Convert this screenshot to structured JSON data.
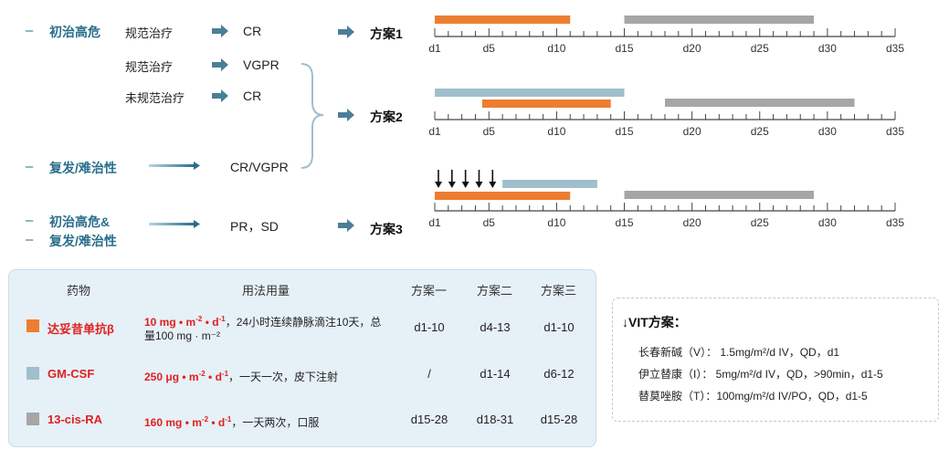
{
  "flow": {
    "bullet": "–",
    "categories": {
      "newly_high_risk": "初治高危",
      "relapsed_refractory": "复发/难治性",
      "newly_high_risk_and": "初治高危&",
      "relapsed_refractory_2": "复发/难治性"
    },
    "steps": {
      "standard_1": "规范治疗",
      "standard_2": "规范治疗",
      "non_standard": "未规范治疗"
    },
    "responses": {
      "r1": "CR",
      "r2": "VGPR",
      "r3": "CR",
      "r4": "CR/VGPR",
      "r5": "PR，SD"
    },
    "plans": [
      "方案1",
      "方案2",
      "方案3"
    ]
  },
  "colors": {
    "dinutuximab": "#ed7d31",
    "gmcsf": "#9fbfcc",
    "cis_ra": "#a6a6a6",
    "accent": "#2a6d8c"
  },
  "timeline": {
    "axis_min": 1,
    "axis_max": 35,
    "tick_labels": [
      "d1",
      "d5",
      "d10",
      "d15",
      "d20",
      "d25",
      "d30",
      "d35"
    ],
    "tick_values": [
      1,
      5,
      10,
      15,
      20,
      25,
      30,
      35
    ],
    "plan1": [
      {
        "drug": "dinutuximab",
        "start": 1,
        "end": 11
      },
      {
        "drug": "cis_ra",
        "start": 15,
        "end": 29
      }
    ],
    "plan2": [
      {
        "drug": "gmcsf",
        "start": 1,
        "end": 15
      },
      {
        "drug": "dinutuximab",
        "start": 4.5,
        "end": 14
      },
      {
        "drug": "cis_ra",
        "start": 18,
        "end": 32
      }
    ],
    "plan3": [
      {
        "drug": "gmcsf",
        "start": 6,
        "end": 13
      },
      {
        "drug": "dinutuximab",
        "start": 1,
        "end": 11
      },
      {
        "drug": "cis_ra",
        "start": 15,
        "end": 29
      }
    ],
    "plan3_vit_arrows": [
      1,
      2,
      3,
      4,
      5
    ]
  },
  "table": {
    "headers": {
      "drug": "药物",
      "dose": "用法用量",
      "plan1": "方案一",
      "plan2": "方案二",
      "plan3": "方案三"
    },
    "rows": [
      {
        "color_key": "dinutuximab",
        "name": "达妥昔单抗β",
        "dose_bold": "10 mg • m",
        "dose_sup1": "-2",
        "dose_mid": " • d",
        "dose_sup2": "-1",
        "dose_rest": "，24小时连续静脉滴注10天，总量100 mg · m⁻²",
        "plan1": "d1-10",
        "plan2": "d4-13",
        "plan3": "d1-10"
      },
      {
        "color_key": "gmcsf",
        "name": "GM-CSF",
        "dose_bold": "250 μg • m",
        "dose_sup1": "-2",
        "dose_mid": " • d",
        "dose_sup2": "-1",
        "dose_rest": "，一天一次，皮下注射",
        "plan1": "/",
        "plan2": "d1-14",
        "plan3": "d6-12"
      },
      {
        "color_key": "cis_ra",
        "name": "13-cis-RA",
        "dose_bold": "160 mg • m",
        "dose_sup1": "-2",
        "dose_mid": " • d",
        "dose_sup2": "-1",
        "dose_rest": "，一天两次，口服",
        "plan1": "d15-28",
        "plan2": "d18-31",
        "plan3": "d15-28"
      }
    ]
  },
  "vit": {
    "arrow": "↓",
    "title": "VIT方案：",
    "lines": [
      "长春新碱（V）： 1.5mg/m²/d IV，QD，d1",
      "伊立替康（I）： 5mg/m²/d IV，QD，>90min，d1-5",
      "替莫唑胺（T）：100mg/m²/d IV/PO，QD，d1-5"
    ]
  }
}
